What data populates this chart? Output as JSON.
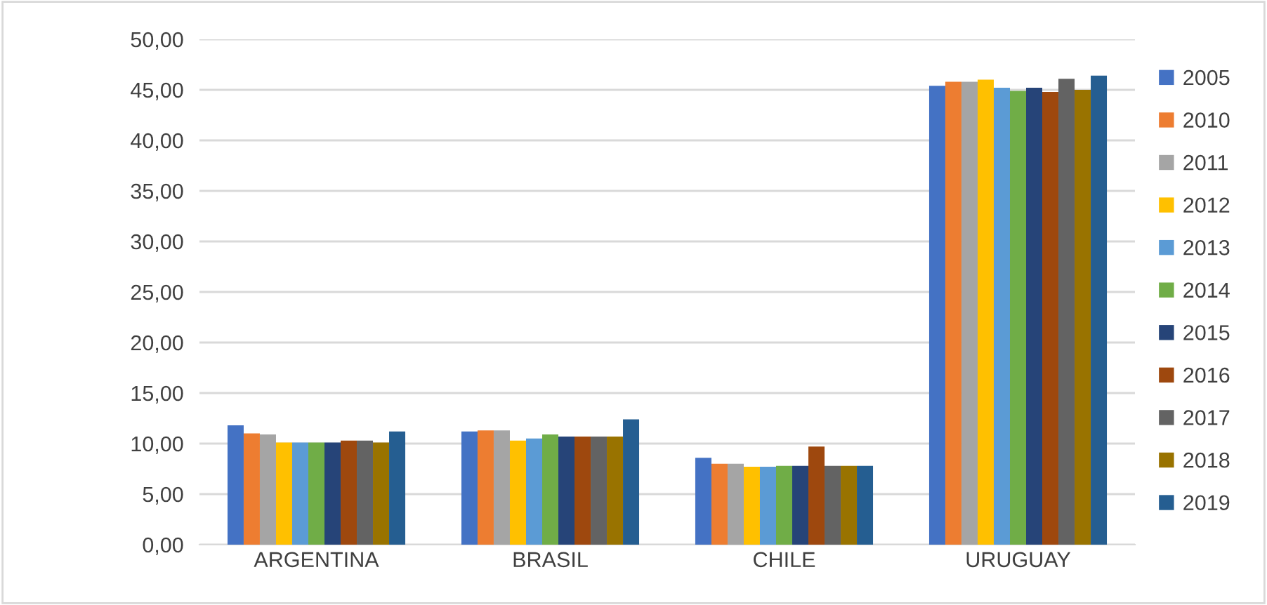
{
  "chart_data": {
    "type": "bar",
    "categories": [
      "ARGENTINA",
      "BRASIL",
      "CHILE",
      "URUGUAY"
    ],
    "series": [
      {
        "name": "2005",
        "color": "#4472c4",
        "values": [
          11.8,
          11.2,
          8.6,
          45.4
        ]
      },
      {
        "name": "2010",
        "color": "#ed7d31",
        "values": [
          11.0,
          11.3,
          8.0,
          45.8
        ]
      },
      {
        "name": "2011",
        "color": "#a5a5a5",
        "values": [
          10.9,
          11.3,
          8.0,
          45.8
        ]
      },
      {
        "name": "2012",
        "color": "#ffc000",
        "values": [
          10.1,
          10.3,
          7.7,
          46.0
        ]
      },
      {
        "name": "2013",
        "color": "#5b9bd5",
        "values": [
          10.1,
          10.5,
          7.7,
          45.2
        ]
      },
      {
        "name": "2014",
        "color": "#70ad47",
        "values": [
          10.1,
          10.9,
          7.8,
          44.9
        ]
      },
      {
        "name": "2015",
        "color": "#264478",
        "values": [
          10.1,
          10.7,
          7.8,
          45.2
        ]
      },
      {
        "name": "2016",
        "color": "#9e480e",
        "values": [
          10.3,
          10.7,
          9.7,
          44.8
        ]
      },
      {
        "name": "2017",
        "color": "#636363",
        "values": [
          10.3,
          10.7,
          7.8,
          46.1
        ]
      },
      {
        "name": "2018",
        "color": "#997300",
        "values": [
          10.1,
          10.7,
          7.8,
          45.0
        ]
      },
      {
        "name": "2019",
        "color": "#255e91",
        "values": [
          11.2,
          12.4,
          7.8,
          46.4
        ]
      }
    ],
    "ylim": [
      0,
      50
    ],
    "yticks": [
      {
        "value": 0,
        "label": "0,00"
      },
      {
        "value": 5,
        "label": "5,00"
      },
      {
        "value": 10,
        "label": "10,00"
      },
      {
        "value": 15,
        "label": "15,00"
      },
      {
        "value": 20,
        "label": "20,00"
      },
      {
        "value": 25,
        "label": "25,00"
      },
      {
        "value": 30,
        "label": "30,00"
      },
      {
        "value": 35,
        "label": "35,00"
      },
      {
        "value": 40,
        "label": "40,00"
      },
      {
        "value": 45,
        "label": "45,00"
      },
      {
        "value": 50,
        "label": "50,00"
      }
    ],
    "grid": "y",
    "legend": "right"
  }
}
